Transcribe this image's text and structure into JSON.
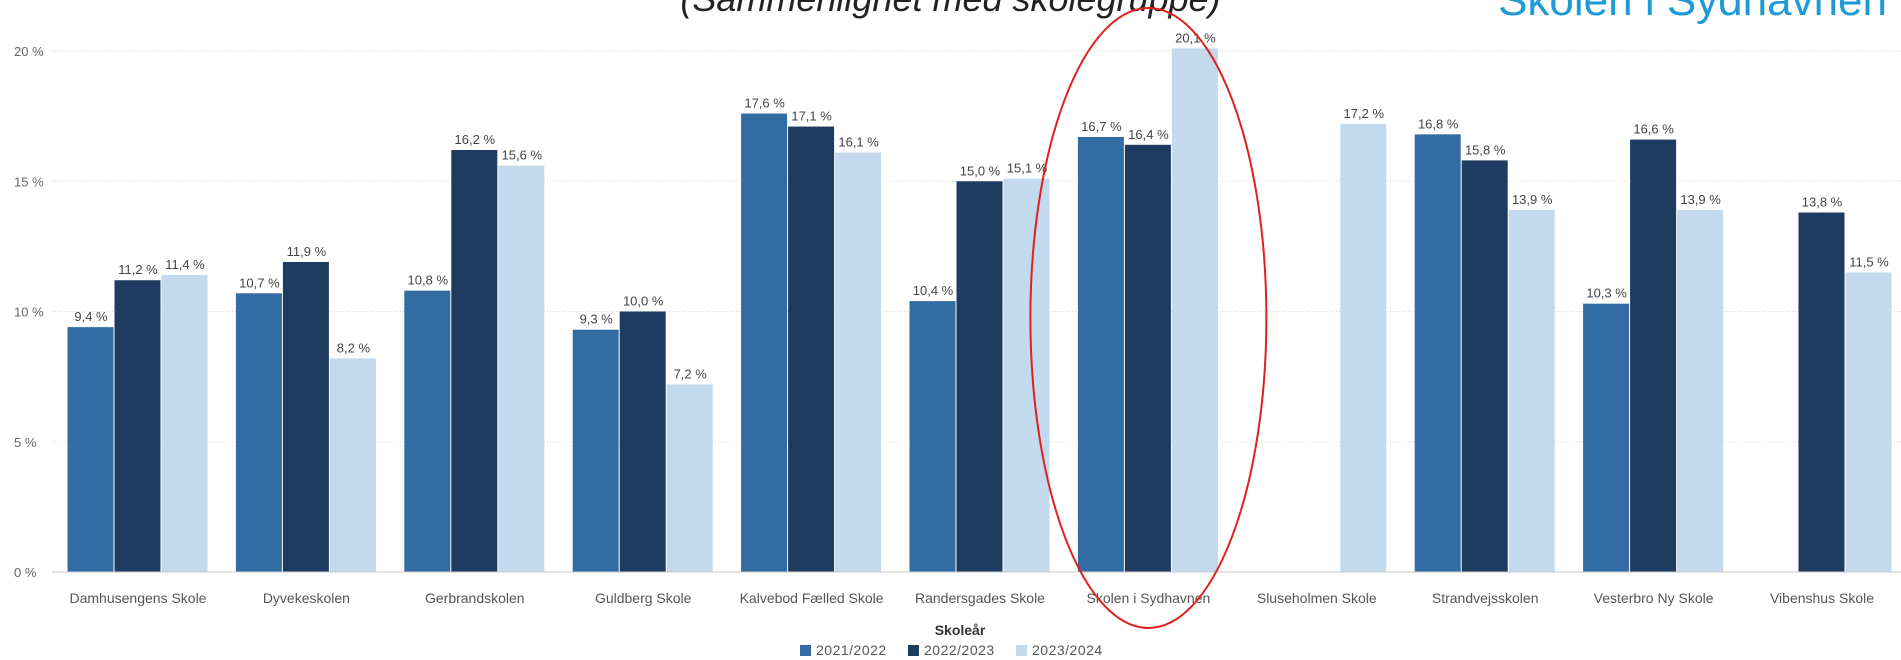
{
  "header": {
    "subtitle": "(Sammenlignet med skolegruppe)",
    "brand": "Skolen i Sydhavnen"
  },
  "colors": {
    "series": [
      "#336ca3",
      "#1e3c5f",
      "#c3d9ee"
    ],
    "highlight": "#e0201e",
    "grid": "#d6d6d6"
  },
  "chart_data": {
    "type": "bar",
    "categories": [
      "Damhusengens Skole",
      "Dyvekeskolen",
      "Gerbrandskolen",
      "Guldberg Skole",
      "Kalvebod Fælled Skole",
      "Randersgades Skole",
      "Skolen i Sydhavnen",
      "Sluseholmen Skole",
      "Strandvejsskolen",
      "Vesterbro Ny Skole",
      "Vibenshus Skole"
    ],
    "series": [
      {
        "name": "2021/2022",
        "values": [
          9.4,
          10.7,
          10.8,
          9.3,
          17.6,
          10.4,
          16.7,
          null,
          16.8,
          10.3,
          null
        ],
        "labels": [
          "9,4 %",
          "10,7 %",
          "10,8 %",
          "9,3 %",
          "17,6 %",
          "10,4 %",
          "16,7 %",
          "",
          "16,8 %",
          "10,3 %",
          ""
        ]
      },
      {
        "name": "2022/2023",
        "values": [
          11.2,
          11.9,
          16.2,
          10.0,
          17.1,
          15.0,
          16.4,
          null,
          15.8,
          16.6,
          13.8
        ],
        "labels": [
          "11,2 %",
          "11,9 %",
          "16,2 %",
          "10,0 %",
          "17,1 %",
          "15,0 %",
          "16,4 %",
          "",
          "15,8 %",
          "16,6 %",
          "13,8 %"
        ]
      },
      {
        "name": "2023/2024",
        "values": [
          11.4,
          8.2,
          15.6,
          7.2,
          16.1,
          15.1,
          20.1,
          17.2,
          13.9,
          13.9,
          11.5
        ],
        "labels": [
          "11,4 %",
          "8,2 %",
          "15,6 %",
          "7,2 %",
          "16,1 %",
          "15,1 %",
          "20,1 %",
          "17,2 %",
          "13,9 %",
          "13,9 %",
          "11,5 %"
        ]
      }
    ],
    "yticks": [
      0,
      5,
      10,
      15,
      20
    ],
    "ytick_labels": [
      "0 %",
      "5 %",
      "10 %",
      "15 %",
      "20 %"
    ],
    "ylim": [
      0,
      20
    ],
    "grid": true,
    "legend": {
      "title": "Skoleår",
      "position": "bottom-center"
    },
    "highlighted_category": "Skolen i Sydhavnen"
  }
}
